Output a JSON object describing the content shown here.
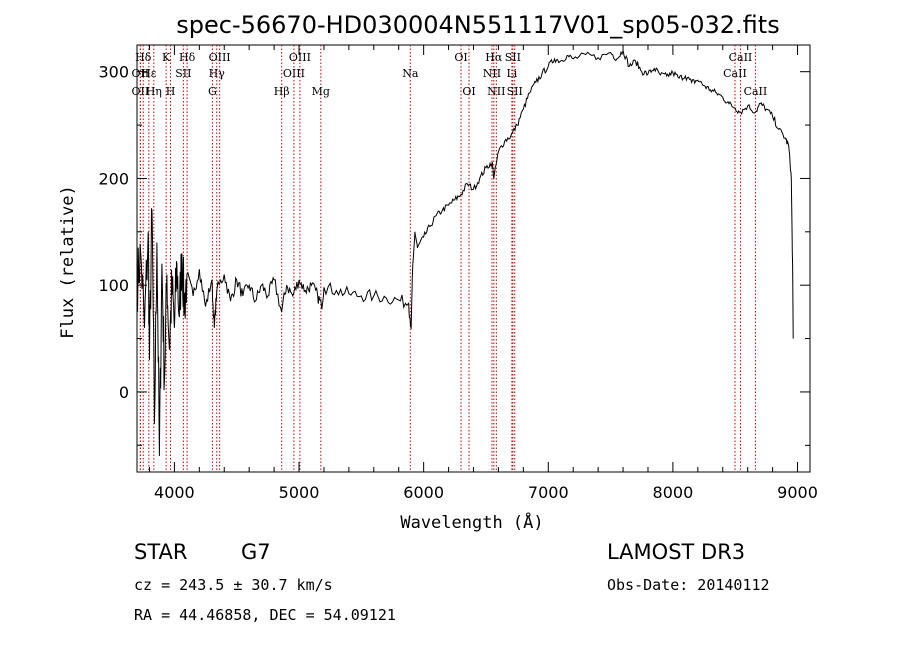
{
  "chart_data": {
    "type": "line",
    "title": "spec-56670-HD030004N551117V01_sp05-032.fits",
    "xlabel": "Wavelength (Å)",
    "ylabel": "Flux (relative)",
    "xlim": [
      3700,
      9100
    ],
    "ylim": [
      -75,
      325
    ],
    "x_ticks": [
      4000,
      5000,
      6000,
      7000,
      8000,
      9000
    ],
    "y_ticks": [
      0,
      100,
      200,
      300
    ],
    "series": [
      {
        "name": "spectrum",
        "points": [
          [
            3700,
            100
          ],
          [
            3730,
            130
          ],
          [
            3760,
            60
          ],
          [
            3790,
            150
          ],
          [
            3800,
            30
          ],
          [
            3820,
            170
          ],
          [
            3840,
            -30
          ],
          [
            3860,
            140
          ],
          [
            3880,
            -60
          ],
          [
            3900,
            120
          ],
          [
            3920,
            10
          ],
          [
            3940,
            110
          ],
          [
            3960,
            40
          ],
          [
            3980,
            100
          ],
          [
            4000,
            60
          ],
          [
            4020,
            120
          ],
          [
            4040,
            70
          ],
          [
            4060,
            130
          ],
          [
            4080,
            80
          ],
          [
            4100,
            110
          ],
          [
            4150,
            90
          ],
          [
            4200,
            115
          ],
          [
            4250,
            80
          ],
          [
            4300,
            105
          ],
          [
            4320,
            60
          ],
          [
            4340,
            95
          ],
          [
            4400,
            110
          ],
          [
            4450,
            85
          ],
          [
            4500,
            105
          ],
          [
            4550,
            90
          ],
          [
            4600,
            100
          ],
          [
            4650,
            85
          ],
          [
            4700,
            100
          ],
          [
            4750,
            90
          ],
          [
            4800,
            105
          ],
          [
            4860,
            75
          ],
          [
            4900,
            100
          ],
          [
            4950,
            90
          ],
          [
            5000,
            105
          ],
          [
            5050,
            95
          ],
          [
            5100,
            100
          ],
          [
            5150,
            90
          ],
          [
            5180,
            80
          ],
          [
            5200,
            98
          ],
          [
            5300,
            95
          ],
          [
            5400,
            92
          ],
          [
            5500,
            90
          ],
          [
            5600,
            90
          ],
          [
            5700,
            88
          ],
          [
            5800,
            86
          ],
          [
            5880,
            83
          ],
          [
            5900,
            60
          ],
          [
            5910,
            110
          ],
          [
            5930,
            150
          ],
          [
            5950,
            135
          ],
          [
            6000,
            145
          ],
          [
            6050,
            155
          ],
          [
            6100,
            165
          ],
          [
            6150,
            170
          ],
          [
            6200,
            175
          ],
          [
            6250,
            180
          ],
          [
            6300,
            185
          ],
          [
            6350,
            195
          ],
          [
            6400,
            190
          ],
          [
            6450,
            200
          ],
          [
            6500,
            210
          ],
          [
            6550,
            215
          ],
          [
            6563,
            200
          ],
          [
            6600,
            225
          ],
          [
            6650,
            235
          ],
          [
            6700,
            240
          ],
          [
            6750,
            250
          ],
          [
            6800,
            265
          ],
          [
            6850,
            280
          ],
          [
            6900,
            290
          ],
          [
            6950,
            298
          ],
          [
            7000,
            305
          ],
          [
            7050,
            312
          ],
          [
            7100,
            310
          ],
          [
            7150,
            315
          ],
          [
            7200,
            312
          ],
          [
            7300,
            316
          ],
          [
            7400,
            313
          ],
          [
            7500,
            318
          ],
          [
            7550,
            312
          ],
          [
            7600,
            320
          ],
          [
            7650,
            305
          ],
          [
            7700,
            310
          ],
          [
            7750,
            300
          ],
          [
            7800,
            298
          ],
          [
            7850,
            303
          ],
          [
            7900,
            297
          ],
          [
            7950,
            296
          ],
          [
            8000,
            299
          ],
          [
            8050,
            294
          ],
          [
            8100,
            296
          ],
          [
            8150,
            290
          ],
          [
            8200,
            292
          ],
          [
            8250,
            287
          ],
          [
            8300,
            283
          ],
          [
            8350,
            280
          ],
          [
            8400,
            276
          ],
          [
            8450,
            270
          ],
          [
            8500,
            266
          ],
          [
            8542,
            262
          ],
          [
            8600,
            268
          ],
          [
            8662,
            262
          ],
          [
            8700,
            270
          ],
          [
            8750,
            265
          ],
          [
            8800,
            258
          ],
          [
            8850,
            246
          ],
          [
            8900,
            238
          ],
          [
            8930,
            230
          ],
          [
            8950,
            200
          ],
          [
            8960,
            120
          ],
          [
            8965,
            50
          ]
        ]
      }
    ],
    "spectral_lines": [
      {
        "label": "Hδ",
        "wavelength": 3750,
        "row": 1
      },
      {
        "label": "OII",
        "wavelength": 3727,
        "row": 2
      },
      {
        "label": "OII",
        "wavelength": 3727,
        "row": 3
      },
      {
        "label": "Hε",
        "wavelength": 3795,
        "row": 2
      },
      {
        "label": "Hη",
        "wavelength": 3835,
        "row": 3
      },
      {
        "label": "K",
        "wavelength": 3934,
        "row": 1
      },
      {
        "label": "H",
        "wavelength": 3969,
        "row": 3
      },
      {
        "label": "Hδ",
        "wavelength": 4102,
        "row": 1
      },
      {
        "label": "SII",
        "wavelength": 4072,
        "row": 2
      },
      {
        "label": "OIII",
        "wavelength": 4363,
        "row": 1
      },
      {
        "label": "Hγ",
        "wavelength": 4340,
        "row": 2
      },
      {
        "label": "G",
        "wavelength": 4305,
        "row": 3
      },
      {
        "label": "Hβ",
        "wavelength": 4861,
        "row": 3
      },
      {
        "label": "OIII",
        "wavelength": 5007,
        "row": 1
      },
      {
        "label": "OIII",
        "wavelength": 4959,
        "row": 2
      },
      {
        "label": "Mg",
        "wavelength": 5175,
        "row": 3
      },
      {
        "label": "Na",
        "wavelength": 5893,
        "row": 2
      },
      {
        "label": "OI",
        "wavelength": 6300,
        "row": 1
      },
      {
        "label": "OI",
        "wavelength": 6364,
        "row": 3
      },
      {
        "label": "Hα",
        "wavelength": 6563,
        "row": 1
      },
      {
        "label": "SII",
        "wavelength": 6716,
        "row": 1
      },
      {
        "label": "NII",
        "wavelength": 6548,
        "row": 2
      },
      {
        "label": "Li",
        "wavelength": 6708,
        "row": 2
      },
      {
        "label": "NII",
        "wavelength": 6583,
        "row": 3
      },
      {
        "label": "SII",
        "wavelength": 6731,
        "row": 3
      },
      {
        "label": "CaII",
        "wavelength": 8542,
        "row": 1
      },
      {
        "label": "CaII",
        "wavelength": 8498,
        "row": 2
      },
      {
        "label": "CaII",
        "wavelength": 8662,
        "row": 3
      }
    ],
    "line_color": "#c00000"
  },
  "info": {
    "object_class": "STAR",
    "subclass": "G7",
    "survey": "LAMOST DR3",
    "cz": "cz = 243.5 ± 30.7 km/s",
    "obs_date": "Obs-Date: 20140112",
    "coords": "RA =  44.46858, DEC =  54.09121"
  }
}
